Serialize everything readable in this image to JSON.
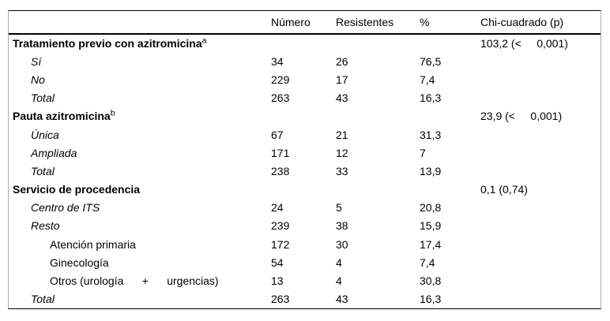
{
  "table": {
    "headers": {
      "label": "",
      "numero": "Número",
      "resistentes": "Resistentes",
      "pct": "%",
      "chi": "Chi-cuadrado (p)"
    },
    "rows": [
      {
        "type": "section",
        "label": "Tratamiento previo con azitromicina",
        "sup": "a",
        "numero": "",
        "resistentes": "",
        "pct": "",
        "chi": "103,2 (<     0,001)"
      },
      {
        "type": "item",
        "label": "Sí",
        "sup": "",
        "numero": "34",
        "resistentes": "26",
        "pct": "76,5",
        "chi": ""
      },
      {
        "type": "item",
        "label": "No",
        "sup": "",
        "numero": "229",
        "resistentes": "17",
        "pct": "7,4",
        "chi": ""
      },
      {
        "type": "item",
        "label": "Total",
        "sup": "",
        "numero": "263",
        "resistentes": "43",
        "pct": "16,3",
        "chi": ""
      },
      {
        "type": "section",
        "label": "Pauta azitromicina",
        "sup": "b",
        "numero": "",
        "resistentes": "",
        "pct": "",
        "chi": "23,9 (<     0,001)"
      },
      {
        "type": "item",
        "label": "Única",
        "sup": "",
        "numero": "67",
        "resistentes": "21",
        "pct": "31,3",
        "chi": ""
      },
      {
        "type": "item",
        "label": "Ampliada",
        "sup": "",
        "numero": "171",
        "resistentes": "12",
        "pct": "7",
        "chi": ""
      },
      {
        "type": "item",
        "label": "Total",
        "sup": "",
        "numero": "238",
        "resistentes": "33",
        "pct": "13,9",
        "chi": ""
      },
      {
        "type": "section",
        "label": "Servicio de procedencia",
        "sup": "",
        "numero": "",
        "resistentes": "",
        "pct": "",
        "chi": "0,1 (0,74)"
      },
      {
        "type": "item",
        "label": "Centro de ITS",
        "sup": "",
        "numero": "24",
        "resistentes": "5",
        "pct": "20,8",
        "chi": ""
      },
      {
        "type": "item",
        "label": "Resto",
        "sup": "",
        "numero": "239",
        "resistentes": "38",
        "pct": "15,9",
        "chi": ""
      },
      {
        "type": "subitem",
        "label": "Atención primaria",
        "sup": "",
        "numero": "172",
        "resistentes": "30",
        "pct": "17,4",
        "chi": ""
      },
      {
        "type": "subitem",
        "label": "Ginecología",
        "sup": "",
        "numero": "54",
        "resistentes": "4",
        "pct": "7,4",
        "chi": ""
      },
      {
        "type": "subitem",
        "label": "Otros (urología      +      urgencias)",
        "sup": "",
        "numero": "13",
        "resistentes": "4",
        "pct": "30,8",
        "chi": ""
      },
      {
        "type": "item",
        "label": "Total",
        "sup": "",
        "numero": "263",
        "resistentes": "43",
        "pct": "16,3",
        "chi": ""
      }
    ],
    "colors": {
      "rule": "#000000",
      "side_rule": "#ababab",
      "text": "#000000",
      "background": "#ffffff"
    }
  }
}
